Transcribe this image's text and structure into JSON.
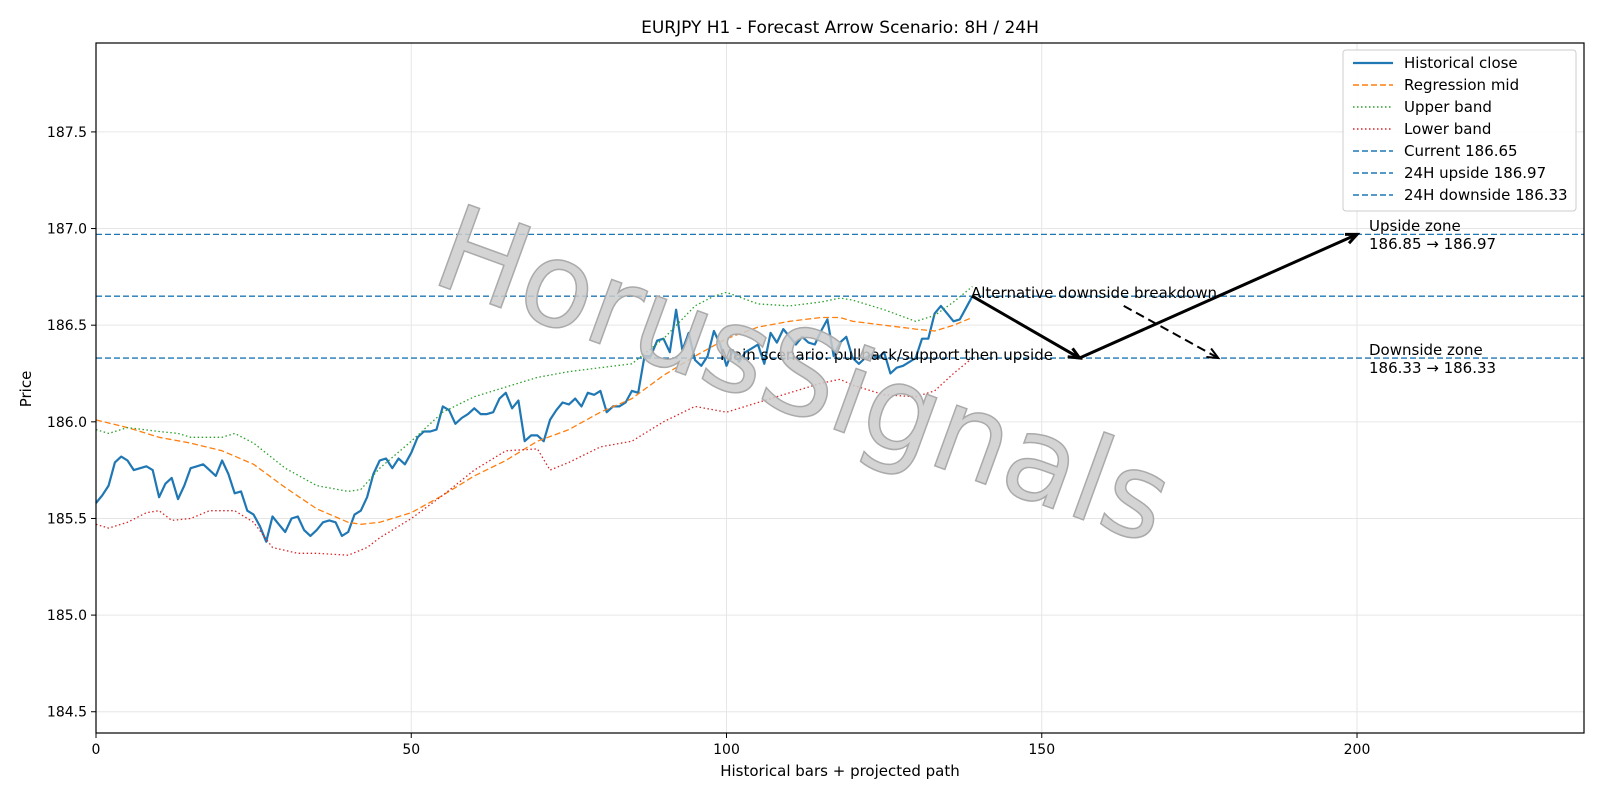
{
  "chart_data": {
    "type": "line",
    "title": "EURJPY H1 - Forecast Arrow Scenario: 8H / 24H",
    "xlabel": "Historical bars + projected path",
    "ylabel": "Price",
    "xlim": [
      0,
      236
    ],
    "ylim": [
      184.39,
      187.96
    ],
    "x_ticks": [
      0,
      50,
      100,
      150,
      200
    ],
    "y_ticks": [
      184.5,
      185.0,
      185.5,
      186.0,
      186.5,
      187.0,
      187.5
    ],
    "y_tick_labels": [
      "184.5",
      "185.0",
      "185.5",
      "186.0",
      "186.5",
      "187.0",
      "187.5"
    ],
    "grid": true,
    "legend_position": "top-right",
    "watermark": "HorusSignals",
    "series": [
      {
        "name": "Historical close",
        "style": "solid",
        "color": "#1f77b4",
        "values": [
          185.58,
          185.62,
          185.67,
          185.79,
          185.82,
          185.8,
          185.75,
          185.76,
          185.77,
          185.75,
          185.61,
          185.68,
          185.71,
          185.6,
          185.67,
          185.76,
          185.77,
          185.78,
          185.75,
          185.72,
          185.8,
          185.73,
          185.63,
          185.64,
          185.54,
          185.52,
          185.46,
          185.38,
          185.51,
          185.47,
          185.43,
          185.5,
          185.51,
          185.44,
          185.41,
          185.44,
          185.48,
          185.49,
          185.48,
          185.41,
          185.43,
          185.52,
          185.54,
          185.61,
          185.73,
          185.8,
          185.81,
          185.76,
          185.81,
          185.78,
          185.84,
          185.92,
          185.95,
          185.95,
          185.96,
          186.08,
          186.06,
          185.99,
          186.02,
          186.04,
          186.07,
          186.04,
          186.04,
          186.05,
          186.12,
          186.15,
          186.07,
          186.11,
          185.9,
          185.93,
          185.93,
          185.9,
          186.01,
          186.06,
          186.1,
          186.09,
          186.12,
          186.08,
          186.15,
          186.14,
          186.16,
          186.05,
          186.08,
          186.08,
          186.1,
          186.16,
          186.15,
          186.34,
          186.34,
          186.42,
          186.43,
          186.36,
          186.58,
          186.37,
          186.46,
          186.32,
          186.29,
          186.34,
          186.47,
          186.4,
          186.29,
          186.37,
          186.31,
          186.36,
          186.38,
          186.4,
          186.3,
          186.46,
          186.41,
          186.48,
          186.44,
          186.4,
          186.44,
          186.41,
          186.4,
          186.47,
          186.53,
          186.34,
          186.41,
          186.44,
          186.33,
          186.3,
          186.33,
          186.35,
          186.33,
          186.36,
          186.25,
          186.28,
          186.29,
          186.31,
          186.33,
          186.43,
          186.43,
          186.56,
          186.6,
          186.56,
          186.52,
          186.53,
          186.59,
          186.65
        ]
      },
      {
        "name": "Regression mid",
        "style": "dashed",
        "color": "#ff7f0e",
        "points": [
          [
            0,
            186.01
          ],
          [
            5,
            185.97
          ],
          [
            10,
            185.92
          ],
          [
            15,
            185.89
          ],
          [
            20,
            185.85
          ],
          [
            25,
            185.78
          ],
          [
            30,
            185.66
          ],
          [
            35,
            185.55
          ],
          [
            40,
            185.48
          ],
          [
            42,
            185.47
          ],
          [
            45,
            185.48
          ],
          [
            50,
            185.53
          ],
          [
            55,
            185.62
          ],
          [
            60,
            185.72
          ],
          [
            65,
            185.8
          ],
          [
            70,
            185.9
          ],
          [
            75,
            185.96
          ],
          [
            80,
            186.05
          ],
          [
            85,
            186.12
          ],
          [
            90,
            186.24
          ],
          [
            95,
            186.34
          ],
          [
            100,
            186.43
          ],
          [
            105,
            186.49
          ],
          [
            110,
            186.52
          ],
          [
            115,
            186.54
          ],
          [
            118,
            186.54
          ],
          [
            120,
            186.52
          ],
          [
            125,
            186.5
          ],
          [
            130,
            186.48
          ],
          [
            133,
            186.47
          ],
          [
            136,
            186.5
          ],
          [
            139,
            186.54
          ]
        ]
      },
      {
        "name": "Upper band",
        "style": "dotted",
        "color": "#2ca02c",
        "points": [
          [
            0,
            185.96
          ],
          [
            2,
            185.94
          ],
          [
            5,
            185.97
          ],
          [
            10,
            185.95
          ],
          [
            13,
            185.94
          ],
          [
            15,
            185.92
          ],
          [
            20,
            185.92
          ],
          [
            22,
            185.94
          ],
          [
            25,
            185.89
          ],
          [
            30,
            185.76
          ],
          [
            35,
            185.67
          ],
          [
            40,
            185.64
          ],
          [
            42,
            185.65
          ],
          [
            45,
            185.76
          ],
          [
            50,
            185.9
          ],
          [
            55,
            186.05
          ],
          [
            60,
            186.13
          ],
          [
            65,
            186.18
          ],
          [
            70,
            186.23
          ],
          [
            75,
            186.26
          ],
          [
            80,
            186.28
          ],
          [
            85,
            186.3
          ],
          [
            90,
            186.43
          ],
          [
            95,
            186.6
          ],
          [
            98,
            186.65
          ],
          [
            100,
            186.67
          ],
          [
            105,
            186.61
          ],
          [
            110,
            186.6
          ],
          [
            115,
            186.62
          ],
          [
            118,
            186.64
          ],
          [
            120,
            186.63
          ],
          [
            125,
            186.58
          ],
          [
            130,
            186.52
          ],
          [
            133,
            186.55
          ],
          [
            136,
            186.62
          ],
          [
            139,
            186.7
          ]
        ]
      },
      {
        "name": "Lower band",
        "style": "dotted",
        "color": "#d62728",
        "points": [
          [
            0,
            185.47
          ],
          [
            2,
            185.45
          ],
          [
            5,
            185.48
          ],
          [
            8,
            185.53
          ],
          [
            10,
            185.54
          ],
          [
            12,
            185.49
          ],
          [
            15,
            185.5
          ],
          [
            18,
            185.54
          ],
          [
            22,
            185.54
          ],
          [
            25,
            185.48
          ],
          [
            28,
            185.35
          ],
          [
            32,
            185.32
          ],
          [
            35,
            185.32
          ],
          [
            40,
            185.31
          ],
          [
            43,
            185.35
          ],
          [
            45,
            185.4
          ],
          [
            50,
            185.5
          ],
          [
            55,
            185.62
          ],
          [
            60,
            185.75
          ],
          [
            65,
            185.85
          ],
          [
            70,
            185.86
          ],
          [
            72,
            185.75
          ],
          [
            75,
            185.79
          ],
          [
            80,
            185.87
          ],
          [
            85,
            185.9
          ],
          [
            90,
            186.0
          ],
          [
            95,
            186.08
          ],
          [
            100,
            186.05
          ],
          [
            105,
            186.1
          ],
          [
            110,
            186.15
          ],
          [
            115,
            186.2
          ],
          [
            118,
            186.22
          ],
          [
            120,
            186.19
          ],
          [
            125,
            186.14
          ],
          [
            130,
            186.13
          ],
          [
            133,
            186.16
          ],
          [
            136,
            186.25
          ],
          [
            139,
            186.33
          ]
        ]
      },
      {
        "name": "Current 186.65",
        "style": "dashed",
        "color": "#1f77b4",
        "hline": 186.65
      },
      {
        "name": "24H upside 186.97",
        "style": "dashed",
        "color": "#1f77b4",
        "hline": 186.97
      },
      {
        "name": "24H downside 186.33",
        "style": "dashed",
        "color": "#1f77b4",
        "hline": 186.33
      }
    ],
    "arrows": [
      {
        "name": "main-scenario",
        "style": "solid",
        "points": [
          [
            139,
            186.65
          ],
          [
            156,
            186.33
          ],
          [
            200,
            186.97
          ]
        ]
      },
      {
        "name": "alternative",
        "style": "dashed",
        "points": [
          [
            163,
            186.6
          ],
          [
            178,
            186.33
          ]
        ]
      }
    ],
    "annotations": {
      "main_scenario": {
        "text": "Main scenario: pullback/support then upside",
        "x": 99,
        "y": 186.33
      },
      "alternative": {
        "text": "Alternative downside breakdown",
        "x": 139,
        "y": 186.65
      },
      "upside_zone_title": {
        "text": "Upside zone",
        "x": 202,
        "y": 187.01
      },
      "upside_zone_range": {
        "text": "186.85 → 186.97",
        "x": 202,
        "y": 186.95
      },
      "downside_zone_title": {
        "text": "Downside zone",
        "x": 202,
        "y": 186.36
      },
      "downside_zone_range": {
        "text": "186.33 → 186.33",
        "x": 202,
        "y": 186.3
      }
    }
  }
}
